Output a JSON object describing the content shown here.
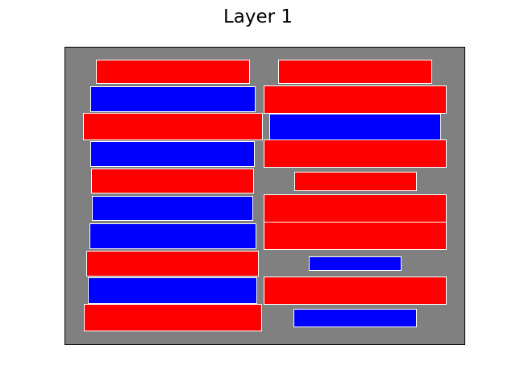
{
  "title": "Layer 1",
  "colors": {
    "background": "#808080",
    "red": "#ff0000",
    "blue": "#0000ff",
    "outline": "#ffffff",
    "frame": "#000000"
  },
  "columns": [
    {
      "name": "left",
      "blocks": [
        {
          "color": "red"
        },
        {
          "color": "blue"
        },
        {
          "color": "red"
        },
        {
          "color": "blue"
        },
        {
          "color": "red"
        },
        {
          "color": "blue"
        },
        {
          "color": "blue"
        },
        {
          "color": "red"
        },
        {
          "color": "blue"
        },
        {
          "color": "red"
        }
      ]
    },
    {
      "name": "right",
      "blocks": [
        {
          "color": "red"
        },
        {
          "color": "red"
        },
        {
          "color": "blue"
        },
        {
          "color": "red"
        },
        {
          "color": "red"
        },
        {
          "color": "red"
        },
        {
          "color": "red"
        },
        {
          "color": "blue"
        },
        {
          "color": "red"
        },
        {
          "color": "blue"
        }
      ]
    }
  ]
}
